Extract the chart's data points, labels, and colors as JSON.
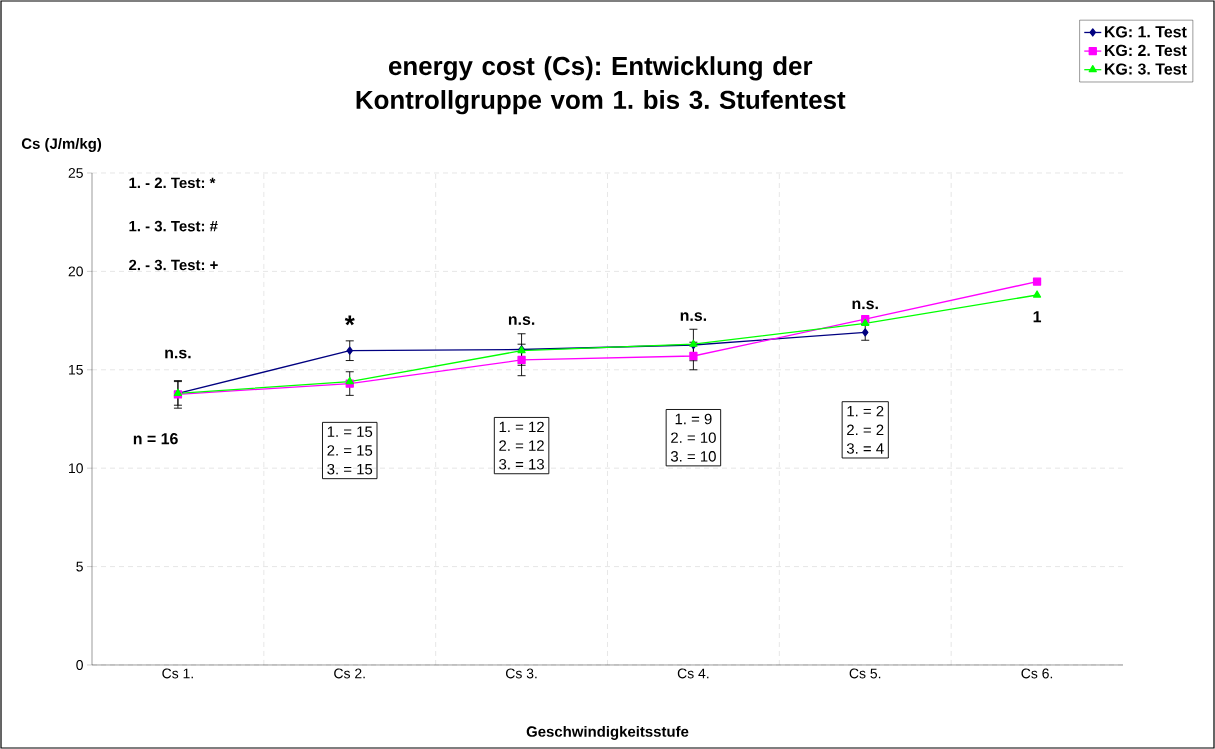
{
  "chart_data": {
    "type": "line",
    "title": "energy cost (Cs): Entwicklung der Kontrollgruppe vom 1. bis 3. Stufentest",
    "xlabel": "Geschwindigkeitsstufe",
    "ylabel": "Cs (J/m/kg)",
    "categories": [
      "Cs 1.",
      "Cs 2.",
      "Cs 3.",
      "Cs 4.",
      "Cs 5.",
      "Cs 6."
    ],
    "series": [
      {
        "name": "KG: 1. Test",
        "color": "#000080",
        "marker": "diamond",
        "values": [
          13.8,
          15.97,
          16.03,
          16.26,
          16.9,
          null
        ],
        "errors": [
          0.6,
          0.5,
          0.8,
          0.8,
          0.4,
          null
        ]
      },
      {
        "name": "KG: 2. Test",
        "color": "#ff00ff",
        "marker": "square",
        "values": [
          13.75,
          14.3,
          15.5,
          15.7,
          17.57,
          19.48
        ],
        "errors": [
          0.7,
          0.6,
          0.8,
          0.7,
          null,
          null
        ]
      },
      {
        "name": "KG: 3. Test",
        "color": "#00ff00",
        "marker": "triangle",
        "values": [
          13.8,
          14.4,
          15.97,
          16.3,
          17.36,
          18.8
        ]
      }
    ],
    "ylim": [
      0,
      25
    ],
    "yticks": [
      0,
      5,
      10,
      15,
      20,
      25
    ],
    "grid": true,
    "legend": "top right",
    "line_style": "solid",
    "annotations": [
      "1. - 2. Test: *",
      "1. - 3. Test: #",
      "2. - 3. Test: +",
      "n.s.",
      "*",
      "n.s.",
      "n.s.",
      "n.s.",
      "1",
      "n = 16",
      "1. = 15",
      "2. = 15",
      "3. = 15",
      "1. = 12",
      "2. = 12",
      "3. = 13",
      "1. = 9",
      "2. = 10",
      "3. = 10",
      "1. = 2",
      "2. = 2",
      "3. = 4"
    ]
  }
}
